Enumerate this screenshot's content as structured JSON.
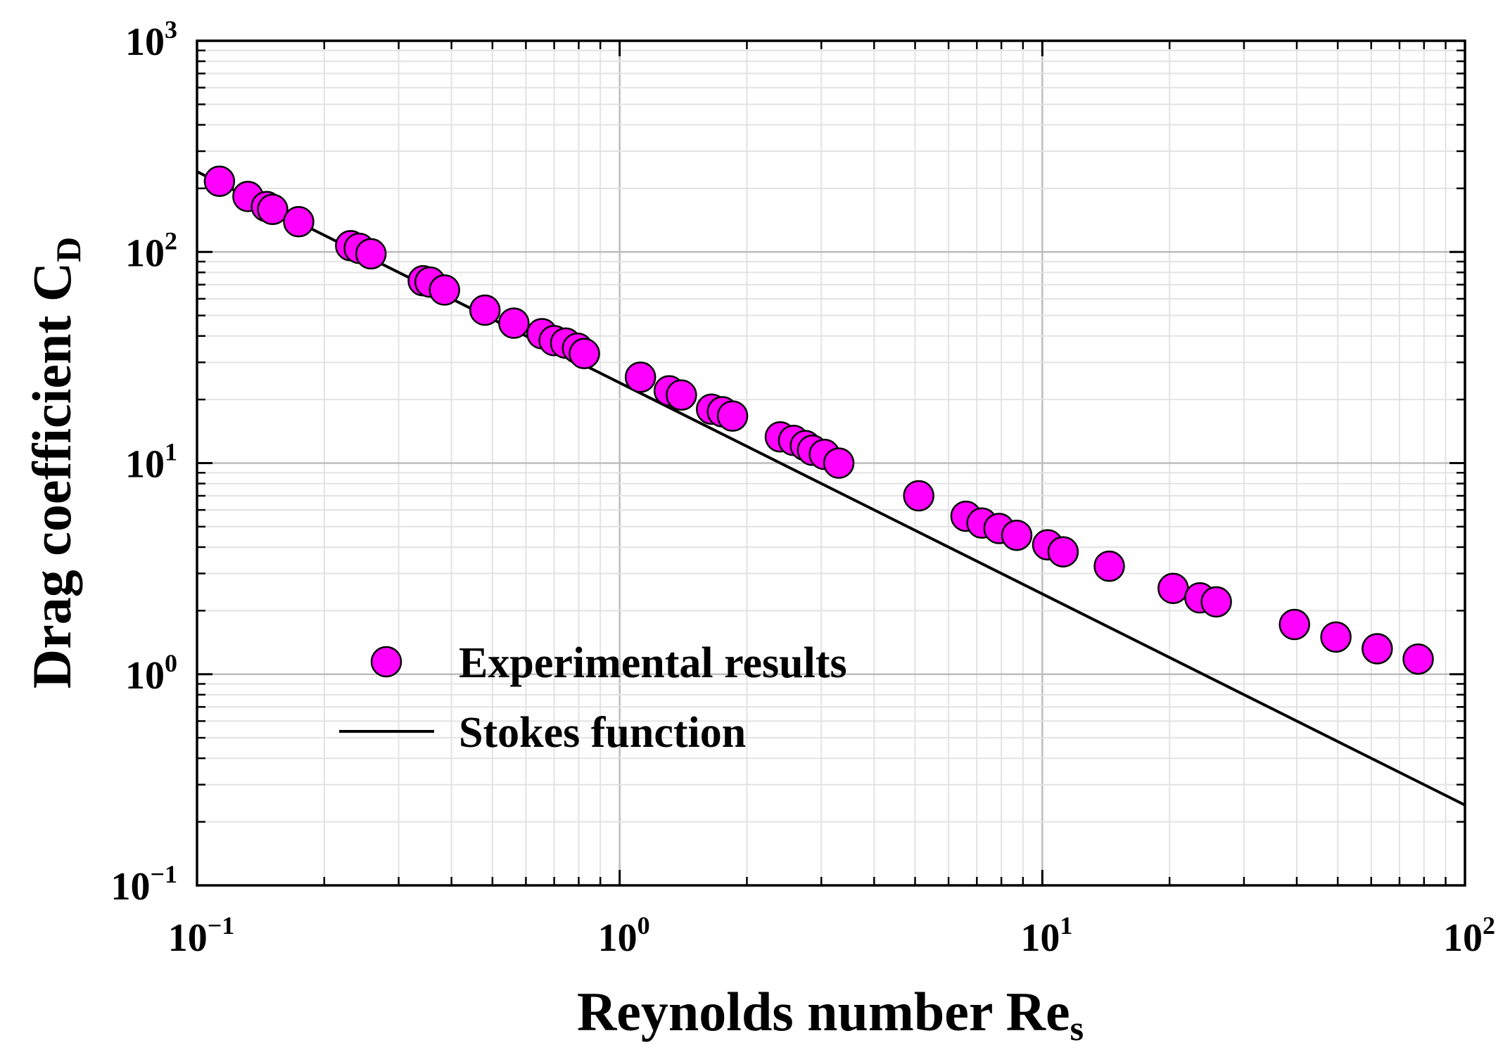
{
  "chart_data": {
    "type": "scatter",
    "title": "",
    "xlabel": "Reynolds number Re",
    "xlabel_sub": "s",
    "ylabel": "Drag coefficient C",
    "ylabel_sub": "D",
    "x_scale": "log",
    "y_scale": "log",
    "xlim": [
      0.1,
      100
    ],
    "ylim": [
      0.1,
      1000
    ],
    "grid": true,
    "legend_position": "bottom-center",
    "x_ticks": [
      {
        "value": 0.1,
        "base": "10",
        "exp": "−1"
      },
      {
        "value": 1,
        "base": "10",
        "exp": "0"
      },
      {
        "value": 10,
        "base": "10",
        "exp": "1"
      },
      {
        "value": 100,
        "base": "10",
        "exp": "2"
      }
    ],
    "y_ticks": [
      {
        "value": 0.1,
        "base": "10",
        "exp": "−1"
      },
      {
        "value": 1,
        "base": "10",
        "exp": "0"
      },
      {
        "value": 10,
        "base": "10",
        "exp": "1"
      },
      {
        "value": 100,
        "base": "10",
        "exp": "2"
      },
      {
        "value": 1000,
        "base": "10",
        "exp": "3"
      }
    ],
    "series": [
      {
        "name": "Experimental results",
        "kind": "markers",
        "color": "#ff00ff",
        "points": [
          [
            0.113,
            216
          ],
          [
            0.132,
            183
          ],
          [
            0.146,
            164
          ],
          [
            0.151,
            159
          ],
          [
            0.174,
            139
          ],
          [
            0.231,
            107
          ],
          [
            0.242,
            104
          ],
          [
            0.258,
            98
          ],
          [
            0.343,
            73
          ],
          [
            0.356,
            72
          ],
          [
            0.385,
            66
          ],
          [
            0.48,
            53
          ],
          [
            0.562,
            46
          ],
          [
            0.655,
            41
          ],
          [
            0.7,
            38
          ],
          [
            0.745,
            37
          ],
          [
            0.795,
            35
          ],
          [
            0.825,
            33
          ],
          [
            1.12,
            25.5
          ],
          [
            1.31,
            22
          ],
          [
            1.4,
            21
          ],
          [
            1.65,
            18
          ],
          [
            1.75,
            17.5
          ],
          [
            1.85,
            16.7
          ],
          [
            2.4,
            13.3
          ],
          [
            2.58,
            12.8
          ],
          [
            2.75,
            12.1
          ],
          [
            2.86,
            11.5
          ],
          [
            3.05,
            11
          ],
          [
            3.3,
            10
          ],
          [
            5.1,
            7
          ],
          [
            6.6,
            5.6
          ],
          [
            7.2,
            5.2
          ],
          [
            7.9,
            4.9
          ],
          [
            8.7,
            4.55
          ],
          [
            10.3,
            4.1
          ],
          [
            11.2,
            3.8
          ],
          [
            14.4,
            3.25
          ],
          [
            20.4,
            2.55
          ],
          [
            23.6,
            2.3
          ],
          [
            25.8,
            2.2
          ],
          [
            39.5,
            1.72
          ],
          [
            49.5,
            1.5
          ],
          [
            62,
            1.32
          ],
          [
            77.5,
            1.18
          ]
        ]
      },
      {
        "name": "Stokes function",
        "kind": "line",
        "color": "#000000",
        "formula": "CD = 24 / Re",
        "points": [
          [
            0.1,
            240
          ],
          [
            100,
            0.24
          ]
        ]
      }
    ]
  }
}
